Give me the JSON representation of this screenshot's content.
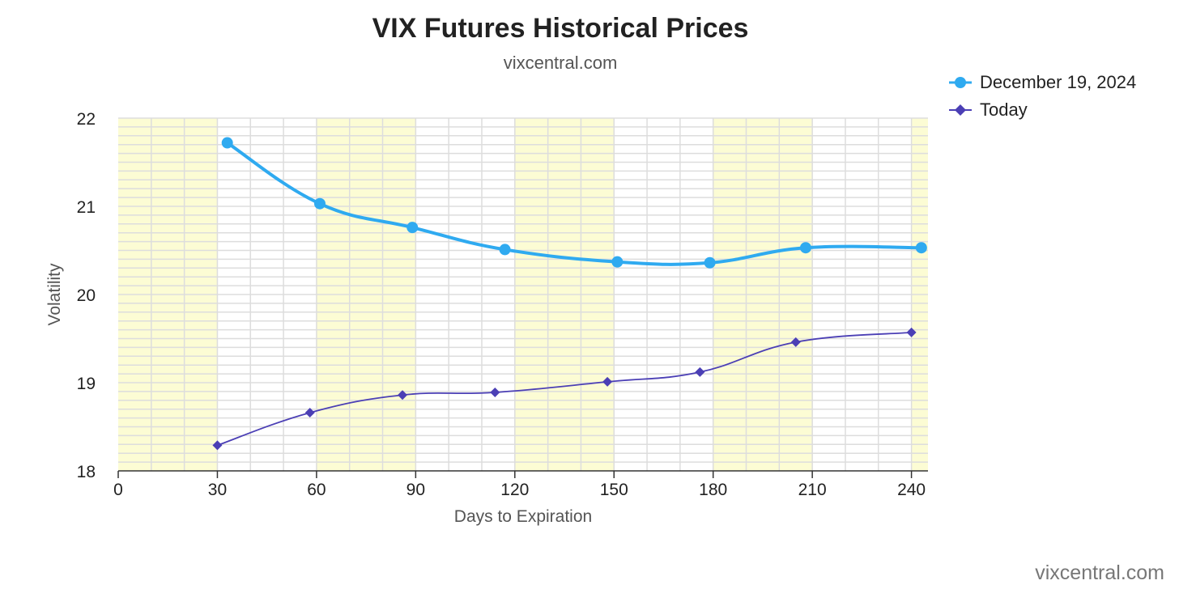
{
  "chart_data": {
    "type": "line",
    "title": "VIX Futures Historical Prices",
    "subtitle": "vixcentral.com",
    "xlabel": "Days to Expiration",
    "ylabel": "Volatility",
    "credit": "vixcentral.com",
    "xlim": [
      0,
      245
    ],
    "ylim": [
      18,
      22
    ],
    "x_ticks": [
      "0",
      "30",
      "60",
      "90",
      "120",
      "150",
      "180",
      "210",
      "240"
    ],
    "x_tick_values": [
      0,
      30,
      60,
      90,
      120,
      150,
      180,
      210,
      240
    ],
    "y_ticks": [
      "18",
      "19",
      "20",
      "21",
      "22"
    ],
    "y_tick_values": [
      18,
      19,
      20,
      21,
      22
    ],
    "grid": true,
    "legend_position": "top-right",
    "highlight_bands": [
      [
        0,
        30
      ],
      [
        60,
        90
      ],
      [
        120,
        150
      ],
      [
        180,
        210
      ],
      [
        240,
        245
      ]
    ],
    "series": [
      {
        "name": "December 19, 2024",
        "color": "#2faaf0",
        "marker": "circle",
        "x": [
          33,
          61,
          89,
          117,
          151,
          179,
          208,
          243
        ],
        "y": [
          21.72,
          21.03,
          20.76,
          20.51,
          20.37,
          20.36,
          20.53,
          20.53
        ]
      },
      {
        "name": "Today",
        "color": "#4b3fb5",
        "marker": "diamond",
        "x": [
          30,
          58,
          86,
          114,
          148,
          176,
          205,
          240
        ],
        "y": [
          18.29,
          18.66,
          18.86,
          18.89,
          19.01,
          19.12,
          19.46,
          19.57
        ]
      }
    ]
  }
}
